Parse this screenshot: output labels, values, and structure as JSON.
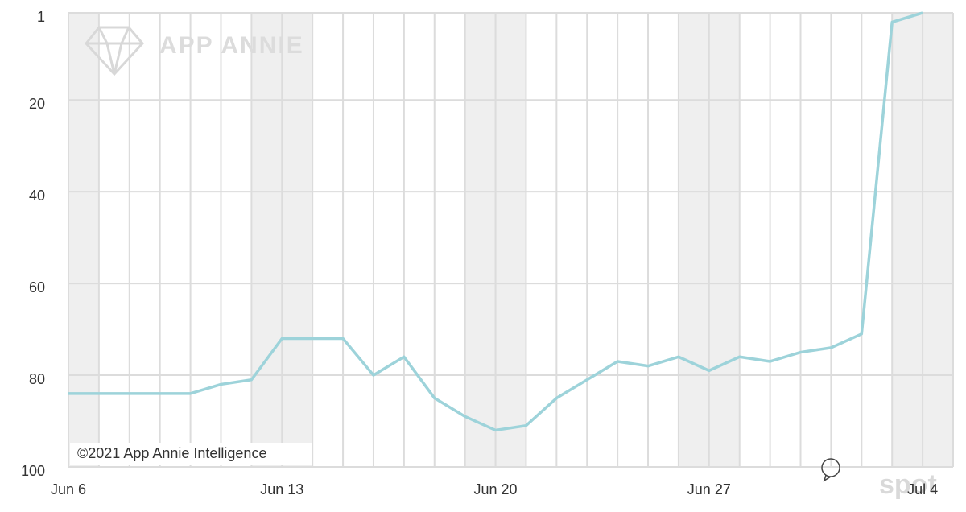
{
  "chart_data": {
    "type": "line",
    "categories": [
      "Jun 6",
      null,
      null,
      null,
      null,
      null,
      null,
      "Jun 13",
      null,
      null,
      null,
      null,
      null,
      null,
      "Jun 20",
      null,
      null,
      null,
      null,
      null,
      null,
      "Jun 27",
      null,
      null,
      null,
      null,
      null,
      null,
      "Jul 4"
    ],
    "series": [
      {
        "color": "#9dd3da",
        "values": [
          84,
          84,
          84,
          84,
          84,
          82,
          81,
          72,
          72,
          72,
          80,
          76,
          85,
          89,
          92,
          91,
          85,
          81,
          77,
          78,
          76,
          79,
          76,
          77,
          75,
          74,
          71,
          3,
          1
        ]
      }
    ],
    "ylim": [
      1,
      100
    ],
    "y_reversed": true,
    "yticks": [
      1,
      20,
      40,
      60,
      80,
      100
    ],
    "grid": true,
    "shaded_categories": [
      0,
      6,
      7,
      13,
      14,
      20,
      21,
      27,
      28
    ],
    "watermark": "APP ANNIE",
    "copyright": "©2021 App Annie Intelligence",
    "source_mark": "spot"
  }
}
